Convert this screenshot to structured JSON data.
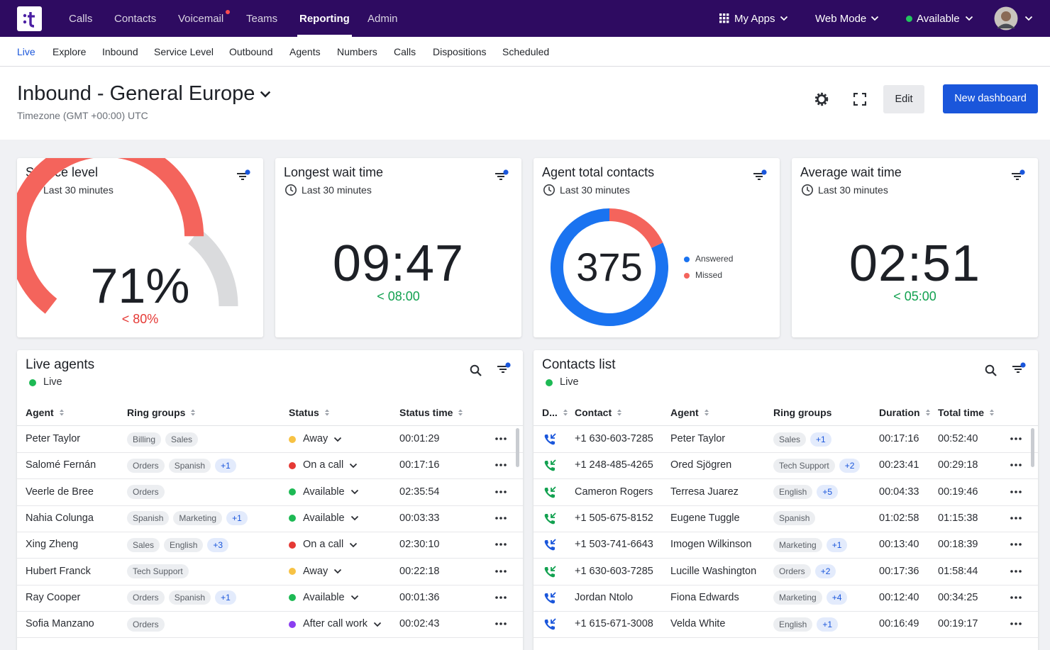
{
  "nav": {
    "items": [
      {
        "label": "Calls"
      },
      {
        "label": "Contacts"
      },
      {
        "label": "Voicemail",
        "badge": true
      },
      {
        "label": "Teams"
      },
      {
        "label": "Reporting",
        "active": true
      },
      {
        "label": "Admin"
      }
    ],
    "my_apps": "My Apps",
    "web_mode": "Web Mode",
    "status": "Available",
    "status_color": "#22c55e"
  },
  "subnav": {
    "items": [
      {
        "label": "Live",
        "active": true
      },
      {
        "label": "Explore"
      },
      {
        "label": "Inbound"
      },
      {
        "label": "Service Level"
      },
      {
        "label": "Outbound"
      },
      {
        "label": "Agents"
      },
      {
        "label": "Numbers"
      },
      {
        "label": "Calls"
      },
      {
        "label": "Dispositions"
      },
      {
        "label": "Scheduled"
      }
    ]
  },
  "header": {
    "title": "Inbound - General Europe",
    "timezone": "Timezone (GMT +00:00) UTC",
    "edit": "Edit",
    "new_dashboard": "New dashboard"
  },
  "widgets": [
    {
      "type": "gauge",
      "title": "Service level",
      "period": "Last 30 minutes",
      "value": 71,
      "value_label": "71%",
      "lim": [
        0,
        100
      ],
      "color": "#f4645c",
      "track_color": "#dadbdd",
      "target": "< 80%",
      "target_color": "#e53935"
    },
    {
      "type": "time",
      "title": "Longest wait time",
      "period": "Last 30 minutes",
      "value": "09:47",
      "target": "< 08:00",
      "target_color": "#12a150"
    },
    {
      "type": "donut",
      "title": "Agent total contacts",
      "period": "Last 30 minutes",
      "total": 375,
      "series": [
        {
          "name": "Answered",
          "color": "#1a73f0",
          "value": 307
        },
        {
          "name": "Missed",
          "color": "#f4645c",
          "value": 68
        }
      ]
    },
    {
      "type": "time",
      "title": "Average wait time",
      "period": "Last 30 minutes",
      "value": "02:51",
      "target": "< 05:00",
      "target_color": "#12a150"
    }
  ],
  "live_agents": {
    "title": "Live agents",
    "status": "Live",
    "status_color": "#1db954",
    "columns": [
      {
        "label": "Agent",
        "sortable": true
      },
      {
        "label": "Ring groups",
        "sortable": true
      },
      {
        "label": "Status",
        "sortable": true
      },
      {
        "label": "Status time",
        "sortable": true
      }
    ],
    "rows": [
      {
        "agent": "Peter Taylor",
        "ring_groups": [
          "Billing",
          "Sales"
        ],
        "status": {
          "label": "Away",
          "color": "#f7c244"
        },
        "status_time": "00:01:29"
      },
      {
        "agent": "Salomé Fernán",
        "ring_groups": [
          "Orders",
          "Spanish",
          "+1"
        ],
        "status": {
          "label": "On a call",
          "color": "#e53935"
        },
        "status_time": "00:17:16"
      },
      {
        "agent": "Veerle de Bree",
        "ring_groups": [
          "Orders"
        ],
        "status": {
          "label": "Available",
          "color": "#1db954"
        },
        "status_time": "02:35:54"
      },
      {
        "agent": "Nahia Colunga",
        "ring_groups": [
          "Spanish",
          "Marketing",
          "+1"
        ],
        "status": {
          "label": "Available",
          "color": "#1db954"
        },
        "status_time": "00:03:33"
      },
      {
        "agent": "Xing Zheng",
        "ring_groups": [
          "Sales",
          "English",
          "+3"
        ],
        "status": {
          "label": "On a call",
          "color": "#e53935"
        },
        "status_time": "02:30:10"
      },
      {
        "agent": "Hubert Franck",
        "ring_groups": [
          "Tech Support"
        ],
        "status": {
          "label": "Away",
          "color": "#f7c244"
        },
        "status_time": "00:22:18"
      },
      {
        "agent": "Ray Cooper",
        "ring_groups": [
          "Orders",
          "Spanish",
          "+1"
        ],
        "status": {
          "label": "Available",
          "color": "#1db954"
        },
        "status_time": "00:01:36"
      },
      {
        "agent": "Sofia Manzano",
        "ring_groups": [
          "Orders"
        ],
        "status": {
          "label": "After call work",
          "color": "#8b3ff0"
        },
        "status_time": "00:02:43"
      }
    ]
  },
  "contacts_list": {
    "title": "Contacts list",
    "status": "Live",
    "status_color": "#1db954",
    "columns": [
      {
        "label": "D...",
        "sortable": true
      },
      {
        "label": "Contact",
        "sortable": true
      },
      {
        "label": "Agent",
        "sortable": true
      },
      {
        "label": "Ring groups"
      },
      {
        "label": "Duration",
        "sortable": true
      },
      {
        "label": "Total time",
        "sortable": true
      }
    ],
    "rows": [
      {
        "icon_color": "#1a56db",
        "contact": "+1 630-603-7285",
        "agent": "Peter Taylor",
        "ring_groups": [
          "Sales",
          "+1"
        ],
        "duration": "00:17:16",
        "total_time": "00:52:40"
      },
      {
        "icon_color": "#12a150",
        "contact": "+1 248-485-4265",
        "agent": "Ored Sjögren",
        "ring_groups": [
          "Tech Support",
          "+2"
        ],
        "duration": "00:23:41",
        "total_time": "00:29:18"
      },
      {
        "icon_color": "#12a150",
        "contact": "Cameron Rogers",
        "agent": "Terresa Juarez",
        "ring_groups": [
          "English",
          "+5"
        ],
        "duration": "00:04:33",
        "total_time": "00:19:46"
      },
      {
        "icon_color": "#12a150",
        "contact": "+1 505-675-8152",
        "agent": "Eugene Tuggle",
        "ring_groups": [
          "Spanish"
        ],
        "duration": "01:02:58",
        "total_time": "01:15:38"
      },
      {
        "icon_color": "#1a56db",
        "contact": "+1 503-741-6643",
        "agent": "Imogen Wilkinson",
        "ring_groups": [
          "Marketing",
          "+1"
        ],
        "duration": "00:13:40",
        "total_time": "00:18:39"
      },
      {
        "icon_color": "#12a150",
        "contact": "+1 630-603-7285",
        "agent": "Lucille Washington",
        "ring_groups": [
          "Orders",
          "+2"
        ],
        "duration": "00:17:36",
        "total_time": "01:58:44"
      },
      {
        "icon_color": "#1a56db",
        "contact": "Jordan Ntolo",
        "agent": "Fiona Edwards",
        "ring_groups": [
          "Marketing",
          "+4"
        ],
        "duration": "00:12:40",
        "total_time": "00:34:25"
      },
      {
        "icon_color": "#1a56db",
        "contact": "+1 615-671-3008",
        "agent": "Velda White",
        "ring_groups": [
          "English",
          "+1"
        ],
        "duration": "00:16:49",
        "total_time": "00:19:17"
      }
    ]
  }
}
